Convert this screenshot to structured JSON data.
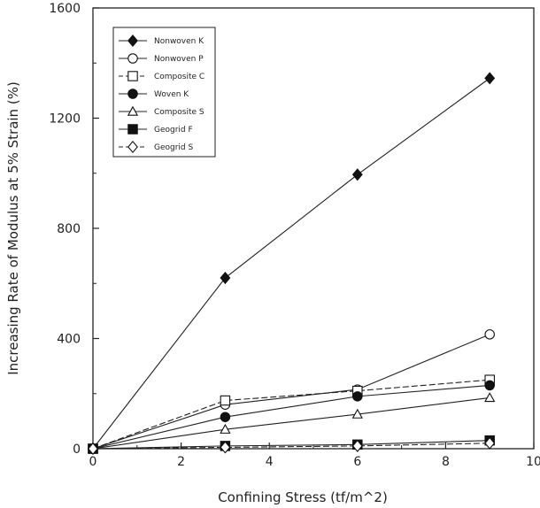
{
  "chart_data": {
    "type": "line",
    "xlabel": "Confining Stress (tf/m^2)",
    "ylabel": "Increasing Rate of Modulus at 5% Strain (%)",
    "xlim": [
      0,
      10
    ],
    "ylim": [
      0,
      1600
    ],
    "x_ticks": [
      "0",
      "2",
      "4",
      "6",
      "8",
      "10"
    ],
    "y_ticks": [
      "0",
      "400",
      "800",
      "1200",
      "1600"
    ],
    "grid": false,
    "legend_position": "top-left",
    "series": [
      {
        "name": "Nonwoven K",
        "marker": "diamond-filled",
        "dash": "solid",
        "x": [
          0,
          3,
          6,
          9
        ],
        "values": [
          0,
          620,
          995,
          1345
        ]
      },
      {
        "name": "Nonwoven P",
        "marker": "circle-open",
        "dash": "solid",
        "x": [
          0,
          3,
          6,
          9
        ],
        "values": [
          0,
          160,
          215,
          415
        ]
      },
      {
        "name": "Composite C",
        "marker": "square-open",
        "dash": "dashed",
        "x": [
          0,
          3,
          6,
          9
        ],
        "values": [
          0,
          175,
          210,
          250
        ]
      },
      {
        "name": "Woven K",
        "marker": "circle-filled",
        "dash": "solid",
        "x": [
          0,
          3,
          6,
          9
        ],
        "values": [
          0,
          115,
          190,
          230
        ]
      },
      {
        "name": "Composite S",
        "marker": "triangle-open",
        "dash": "solid",
        "x": [
          0,
          3,
          6,
          9
        ],
        "values": [
          0,
          70,
          125,
          185
        ]
      },
      {
        "name": "Geogrid F",
        "marker": "square-filled",
        "dash": "solid",
        "x": [
          0,
          3,
          6,
          9
        ],
        "values": [
          0,
          10,
          15,
          30
        ]
      },
      {
        "name": "Geogrid S",
        "marker": "diamond-open",
        "dash": "dashed",
        "x": [
          0,
          3,
          6,
          9
        ],
        "values": [
          0,
          5,
          10,
          20
        ]
      }
    ]
  }
}
